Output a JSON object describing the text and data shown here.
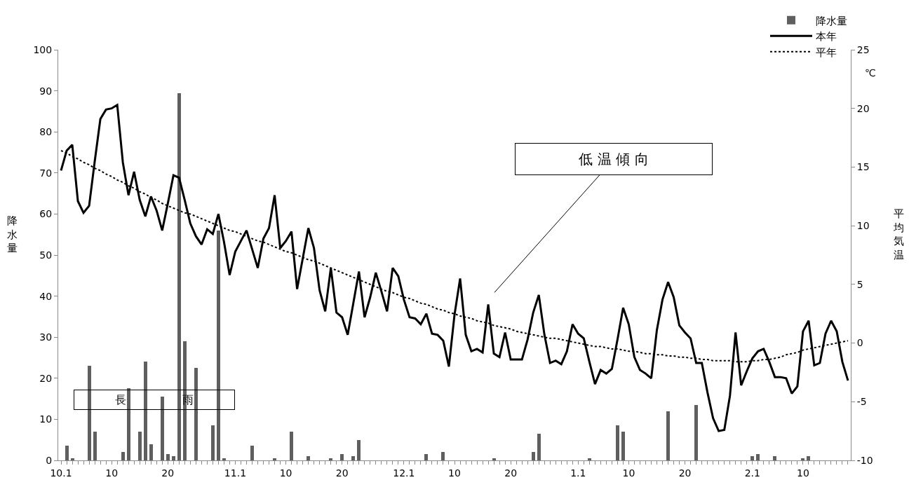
{
  "chart_data": {
    "type": "bar",
    "categories": [
      "10.1",
      null,
      null,
      null,
      null,
      null,
      null,
      null,
      null,
      "10",
      null,
      null,
      null,
      null,
      null,
      null,
      null,
      null,
      null,
      "20",
      null,
      null,
      null,
      null,
      null,
      null,
      null,
      null,
      null,
      null,
      null,
      "11.1",
      null,
      null,
      null,
      null,
      null,
      null,
      null,
      null,
      "10",
      null,
      null,
      null,
      null,
      null,
      null,
      null,
      null,
      null,
      "20",
      null,
      null,
      null,
      null,
      null,
      null,
      null,
      null,
      null,
      null,
      "12.1",
      null,
      null,
      null,
      null,
      null,
      null,
      null,
      null,
      "10",
      null,
      null,
      null,
      null,
      null,
      null,
      null,
      null,
      null,
      "20",
      null,
      null,
      null,
      null,
      null,
      null,
      null,
      null,
      null,
      null,
      null,
      "1.1",
      null,
      null,
      null,
      null,
      null,
      null,
      null,
      null,
      "10",
      null,
      null,
      null,
      null,
      null,
      null,
      null,
      null,
      null,
      "20",
      null,
      null,
      null,
      null,
      null,
      null,
      null,
      null,
      null,
      null,
      null,
      "2.1",
      null,
      null,
      null,
      null,
      null,
      null,
      null,
      null,
      "10",
      null,
      null,
      null,
      null,
      null,
      null,
      null,
      null
    ],
    "series": [
      {
        "name": "降水量",
        "axis": "y",
        "color": "#5f5f5f",
        "values": [
          0,
          3.5,
          0.5,
          0,
          0,
          23,
          7,
          0,
          0,
          0,
          0,
          2,
          17.5,
          0,
          7,
          24,
          4,
          0,
          15.5,
          1.5,
          1,
          89.5,
          29,
          0,
          22.5,
          0,
          0,
          8.5,
          56,
          0.5,
          0,
          0,
          0,
          0,
          3.5,
          0,
          0,
          0,
          0.5,
          0,
          0,
          7,
          0,
          0,
          1,
          0,
          0,
          0,
          0.5,
          0,
          1.5,
          0,
          1,
          5,
          0,
          0,
          0,
          0,
          0,
          0,
          0,
          0,
          0,
          0,
          0,
          1.5,
          0,
          0,
          2,
          0,
          0,
          0,
          0,
          0,
          0,
          0,
          0,
          0.5,
          0,
          0,
          0,
          0,
          0,
          0,
          2,
          6.5,
          0,
          0,
          0,
          0,
          0,
          0,
          0,
          0,
          0.5,
          0,
          0,
          0,
          0,
          8.5,
          7,
          0,
          0,
          0,
          0,
          0,
          0,
          0,
          12,
          0,
          0,
          0,
          0,
          13.5,
          0,
          0,
          0,
          0,
          0,
          0,
          0,
          0,
          0,
          1,
          1.5,
          0,
          0,
          1,
          0,
          0,
          0,
          0,
          0.5,
          1,
          0,
          0,
          0,
          0,
          0,
          0,
          0
        ]
      },
      {
        "name": "本年",
        "type": "line",
        "axis": "y2",
        "color": "#000000",
        "line_style": "solid",
        "values": [
          14.7,
          16.4,
          16.9,
          12.1,
          11.1,
          11.7,
          15.5,
          19.1,
          19.9,
          20.0,
          20.3,
          15.4,
          12.6,
          14.6,
          12.2,
          10.8,
          12.5,
          11.3,
          9.6,
          11.9,
          14.3,
          14.1,
          12.2,
          10.2,
          9.1,
          8.4,
          9.7,
          9.3,
          11.0,
          8.6,
          5.8,
          7.8,
          8.7,
          9.6,
          8.0,
          6.4,
          8.9,
          9.8,
          12.6,
          8.1,
          8.7,
          9.5,
          4.6,
          7.2,
          9.8,
          8.1,
          4.5,
          2.7,
          6.4,
          2.6,
          2.2,
          0.7,
          3.4,
          6.1,
          2.2,
          3.9,
          6.0,
          4.4,
          2.7,
          6.4,
          5.7,
          3.7,
          2.2,
          2.1,
          1.6,
          2.5,
          0.8,
          0.7,
          0.2,
          -2.0,
          2.4,
          5.5,
          0.7,
          -0.7,
          -0.5,
          -0.8,
          3.3,
          -0.9,
          -1.2,
          0.9,
          -1.4,
          -1.4,
          -1.4,
          0.3,
          2.6,
          4.1,
          0.7,
          -1.7,
          -1.5,
          -1.8,
          -0.7,
          1.6,
          0.8,
          0.4,
          -1.6,
          -3.5,
          -2.3,
          -2.6,
          -2.2,
          0.3,
          3.0,
          1.6,
          -1.2,
          -2.3,
          -2.6,
          -3.0,
          1.1,
          3.7,
          5.2,
          3.9,
          1.5,
          0.9,
          0.4,
          -1.7,
          -1.7,
          -4.2,
          -6.4,
          -7.5,
          -7.4,
          -4.5,
          0.9,
          -3.6,
          -2.4,
          -1.3,
          -0.7,
          -0.5,
          -1.6,
          -2.9,
          -2.9,
          -3.0,
          -4.3,
          -3.7,
          1.0,
          1.9,
          -1.9,
          -1.7,
          0.8,
          1.9,
          1.0,
          -1.6,
          -3.2
        ]
      },
      {
        "name": "平年",
        "type": "line",
        "axis": "y2",
        "color": "#000000",
        "line_style": "dotted",
        "values": [
          16.4,
          16.2,
          15.9,
          15.7,
          15.4,
          15.2,
          14.9,
          14.7,
          14.4,
          14.2,
          13.9,
          13.7,
          13.4,
          13.2,
          12.9,
          12.7,
          12.4,
          12.2,
          11.9,
          11.7,
          11.5,
          11.3,
          11.1,
          11.0,
          10.8,
          10.6,
          10.4,
          10.2,
          10.0,
          9.8,
          9.6,
          9.5,
          9.3,
          9.1,
          8.9,
          8.7,
          8.6,
          8.4,
          8.2,
          8.0,
          7.8,
          7.7,
          7.5,
          7.3,
          7.1,
          7.0,
          6.8,
          6.6,
          6.4,
          6.2,
          6.0,
          5.8,
          5.6,
          5.4,
          5.2,
          5.0,
          4.8,
          4.6,
          4.4,
          4.3,
          4.1,
          3.9,
          3.8,
          3.6,
          3.4,
          3.3,
          3.1,
          2.9,
          2.8,
          2.6,
          2.5,
          2.3,
          2.2,
          2.1,
          1.9,
          1.8,
          1.7,
          1.5,
          1.4,
          1.3,
          1.2,
          1.0,
          0.9,
          0.8,
          0.7,
          0.6,
          0.5,
          0.4,
          0.4,
          0.3,
          0.2,
          0.1,
          0.0,
          -0.1,
          -0.2,
          -0.3,
          -0.3,
          -0.4,
          -0.5,
          -0.5,
          -0.6,
          -0.7,
          -0.7,
          -0.8,
          -0.9,
          -0.9,
          -1.0,
          -1.0,
          -1.1,
          -1.1,
          -1.2,
          -1.2,
          -1.3,
          -1.3,
          -1.4,
          -1.4,
          -1.5,
          -1.5,
          -1.5,
          -1.5,
          -1.6,
          -1.6,
          -1.6,
          -1.5,
          -1.5,
          -1.4,
          -1.4,
          -1.3,
          -1.2,
          -1.0,
          -0.9,
          -0.8,
          -0.6,
          -0.5,
          -0.4,
          -0.3,
          -0.2,
          -0.1,
          0.0,
          0.1,
          0.2
        ]
      }
    ],
    "ylabel": "降水量",
    "y2label": "平均気温",
    "ylim": [
      0,
      100
    ],
    "yticks": [
      0,
      10,
      20,
      30,
      40,
      50,
      60,
      70,
      80,
      90,
      100
    ],
    "y2lim": [
      -10,
      25
    ],
    "y2ticks": [
      -10,
      -5,
      0,
      5,
      10,
      15,
      20,
      25
    ],
    "annotations": [
      "長　　　　　雨",
      "低 温 傾 向",
      "℃"
    ],
    "legend": "top right"
  }
}
